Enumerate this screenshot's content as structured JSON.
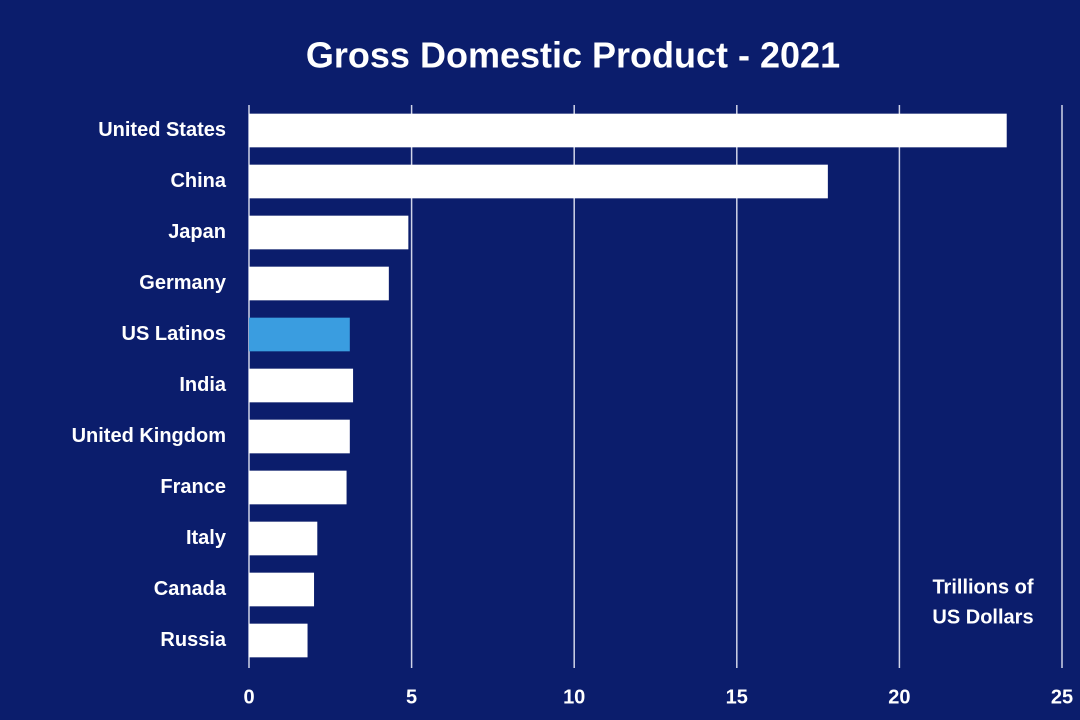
{
  "chart_data": {
    "type": "barh",
    "title": "Gross Domestic Product - 2021",
    "categories": [
      "United States",
      "China",
      "Japan",
      "Germany",
      "US Latinos",
      "India",
      "United Kingdom",
      "France",
      "Italy",
      "Canada",
      "Russia"
    ],
    "values": [
      23.3,
      17.8,
      4.9,
      4.3,
      3.1,
      3.2,
      3.1,
      3.0,
      2.1,
      2.0,
      1.8
    ],
    "colors": [
      "#ffffff",
      "#ffffff",
      "#ffffff",
      "#ffffff",
      "#3a9de0",
      "#ffffff",
      "#ffffff",
      "#ffffff",
      "#ffffff",
      "#ffffff",
      "#ffffff"
    ],
    "xlim": [
      0,
      25
    ],
    "xticks": [
      0,
      5,
      10,
      15,
      20,
      25
    ],
    "grid": true,
    "annotation": [
      "Trillions of",
      "US Dollars"
    ]
  }
}
